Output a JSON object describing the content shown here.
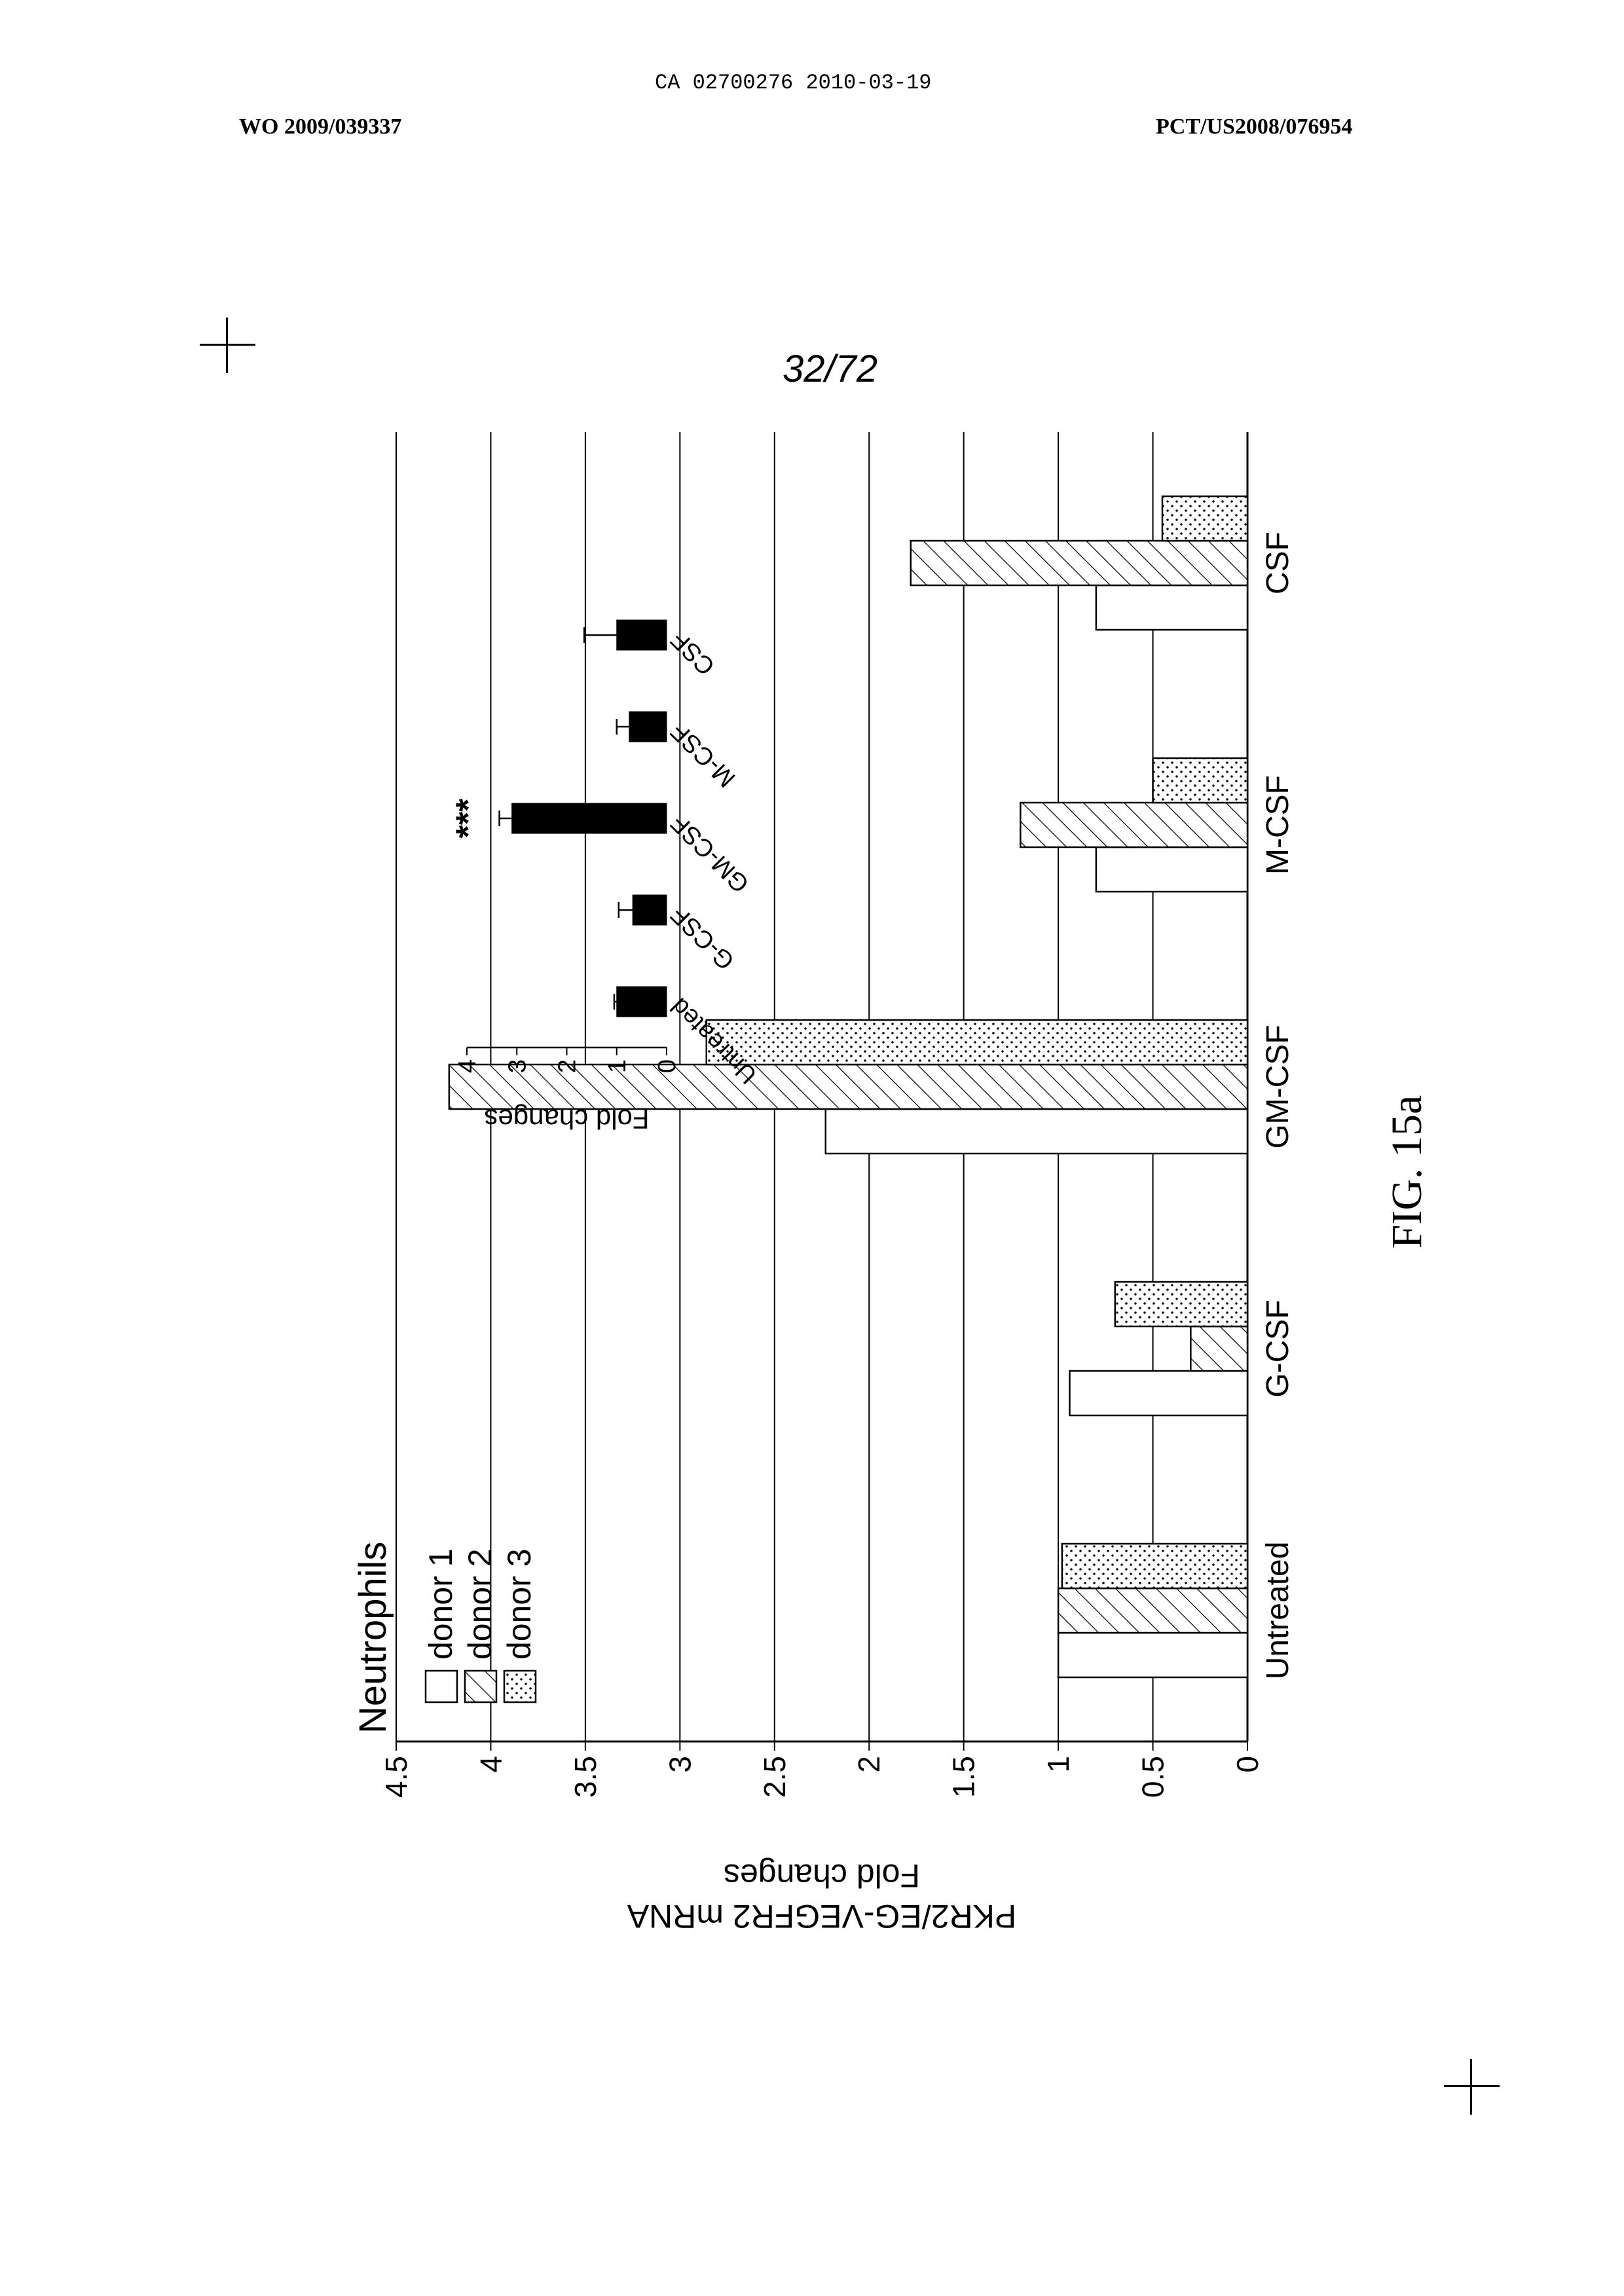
{
  "header": {
    "ca_number": "CA 02700276 2010-03-19",
    "wo_number": "WO 2009/039337",
    "pct_number": "PCT/US2008/076954",
    "page_number": "32/72"
  },
  "figure_label": "FIG. 15a",
  "chart_data": [
    {
      "type": "bar",
      "title": "Neutrophils",
      "ylabel": "PKR2/EG-VEGFR2 mRNA Fold changes",
      "ylabel_line1": "PKR2/EG-VEGFR2 mRNA",
      "ylabel_line2": "Fold changes",
      "xlabel": "",
      "ylim": [
        0,
        4.5
      ],
      "yticks": [
        "0",
        "0.5",
        "1",
        "1.5",
        "2",
        "2.5",
        "3",
        "3.5",
        "4",
        "4.5"
      ],
      "grid": true,
      "legend_position": "top-left",
      "orientation": "rotated 90 degrees counter-clockwise on the page",
      "categories": [
        "Untreated",
        "G-CSF",
        "GM-CSF",
        "M-CSF",
        "CSF"
      ],
      "series": [
        {
          "name": "donor 1",
          "pattern": "open",
          "values": [
            1.0,
            0.94,
            2.23,
            0.8,
            0.8
          ]
        },
        {
          "name": "donor 2",
          "pattern": "diagonal-hatch",
          "values": [
            1.0,
            0.3,
            4.22,
            1.2,
            1.78
          ]
        },
        {
          "name": "donor 3",
          "pattern": "dotted",
          "values": [
            0.98,
            0.7,
            2.86,
            0.5,
            0.45
          ]
        }
      ]
    },
    {
      "type": "bar",
      "title": "",
      "ylabel": "Fold changes",
      "xlabel": "",
      "ylim": [
        0,
        4
      ],
      "yticks": [
        "0",
        "1",
        "2",
        "3",
        "4"
      ],
      "grid": false,
      "orientation": "rotated 90 degrees counter-clockwise on the page (inset)",
      "categories": [
        "Untreated",
        "G-CSF",
        "GM-CSF",
        "M-CSF",
        "CSF"
      ],
      "values": [
        1.0,
        0.68,
        3.1,
        0.75,
        1.0
      ],
      "errors": [
        0.05,
        0.28,
        0.25,
        0.25,
        0.65
      ],
      "annotations": [
        {
          "category": "GM-CSF",
          "text": "***"
        }
      ],
      "color": "#000000"
    }
  ]
}
